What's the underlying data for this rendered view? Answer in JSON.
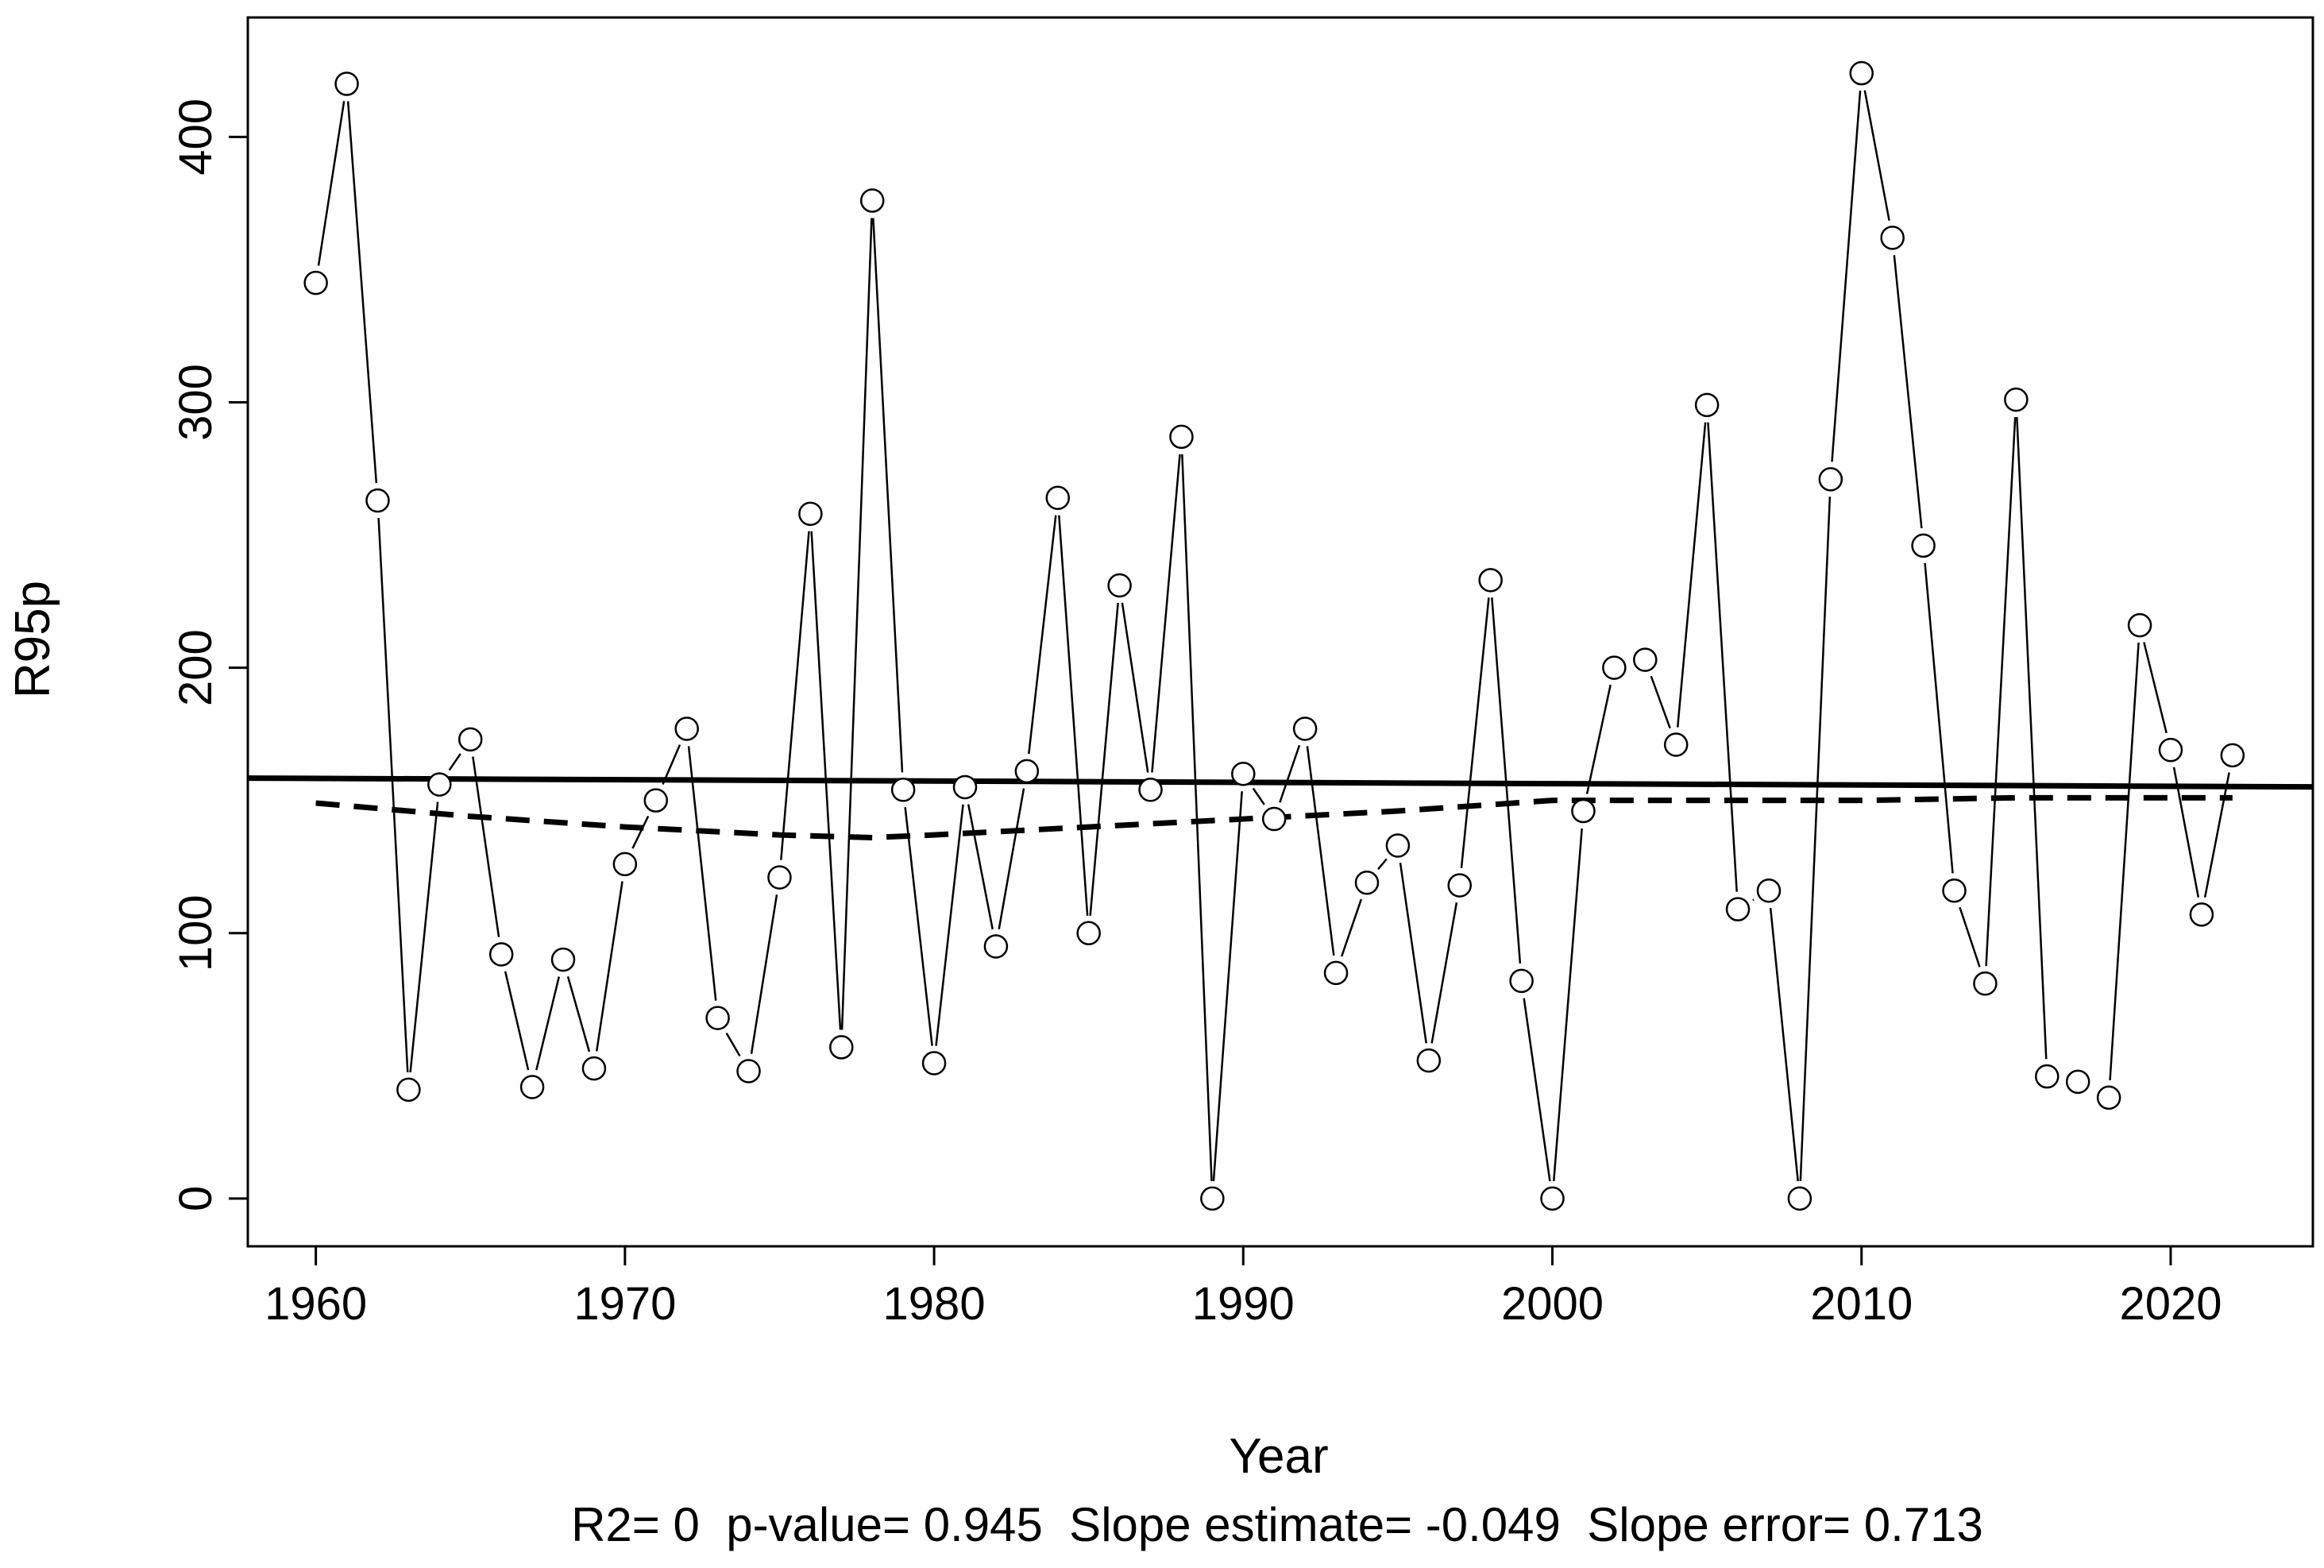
{
  "chart_data": {
    "type": "scatter",
    "xlabel": "Year",
    "ylabel": "R95p",
    "xlim": [
      1957.8,
      2024.6
    ],
    "ylim": [
      -18,
      445
    ],
    "x_ticks": [
      1960,
      1970,
      1980,
      1990,
      2000,
      2010,
      2020
    ],
    "y_ticks": [
      0,
      100,
      200,
      300,
      400
    ],
    "grid": false,
    "series": [
      {
        "style": "points with connecting line",
        "marker": "open circle",
        "x": [
          1960,
          1961,
          1962,
          1963,
          1964,
          1965,
          1966,
          1967,
          1968,
          1969,
          1970,
          1971,
          1972,
          1973,
          1974,
          1975,
          1976,
          1977,
          1978,
          1979,
          1980,
          1981,
          1982,
          1983,
          1984,
          1985,
          1986,
          1987,
          1988,
          1989,
          1990,
          1991,
          1992,
          1993,
          1994,
          1995,
          1996,
          1997,
          1998,
          1999,
          2000,
          2001,
          2002,
          2003,
          2004,
          2005,
          2006,
          2007,
          2008,
          2009,
          2010,
          2011,
          2012,
          2013,
          2014,
          2015,
          2016,
          2017,
          2018,
          2019,
          2020,
          2021,
          2022
        ],
        "y": [
          345,
          420,
          263,
          41,
          156,
          173,
          92,
          42,
          90,
          49,
          126,
          150,
          177,
          68,
          48,
          121,
          258,
          57,
          376,
          154,
          51,
          155,
          95,
          161,
          264,
          100,
          231,
          154,
          287,
          0,
          160,
          143,
          177,
          85,
          119,
          133,
          52,
          118,
          233,
          82,
          0,
          146,
          200,
          203,
          171,
          299,
          109,
          116,
          0,
          271,
          424,
          362,
          246,
          116,
          81,
          301,
          46,
          44,
          38,
          216,
          169,
          107,
          167
        ]
      },
      {
        "style": "solid line",
        "x": [
          1957.8,
          2024.6
        ],
        "y": [
          158.4,
          155.1
        ]
      },
      {
        "style": "dashed line",
        "x": [
          1960,
          1965,
          1970,
          1975,
          1978,
          1980,
          1985,
          1990,
          1995,
          2000,
          2005,
          2010,
          2015,
          2020,
          2022
        ],
        "y": [
          149,
          144,
          140,
          137,
          136,
          137,
          140,
          143,
          146,
          150,
          150,
          150,
          151,
          151,
          151
        ]
      }
    ],
    "stats_text": "R2= 0  p-value= 0.945  Slope estimate= -0.049  Slope error= 0.713"
  }
}
